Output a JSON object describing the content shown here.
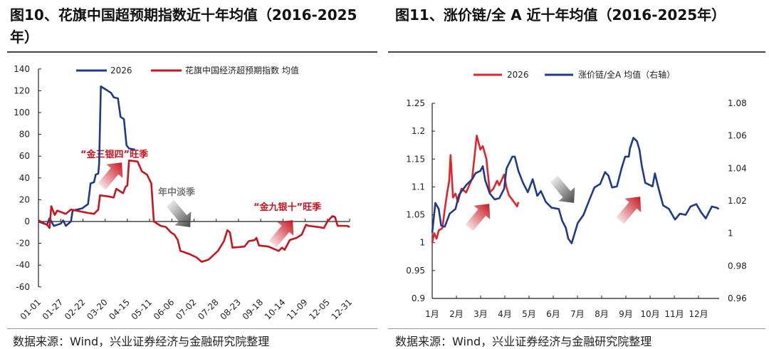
{
  "left": {
    "title": "图10、花旗中国超预期指数近十年均值（2016-2025年）",
    "source": "数据来源：Wind，兴业证券经济与金融研究院整理",
    "annotations": {
      "peak1": "“金三银四”旺季",
      "trough": "年中淡季",
      "peak2": "“金九银十”旺季"
    }
  },
  "right": {
    "title": "图11、涨价链/全 A 近十年均值（2016-2025年）",
    "source": "数据来源：Wind，兴业证券经济与金融研究院整理"
  },
  "chart_data": [
    {
      "type": "line",
      "x_unit": "day of year",
      "x_tick_labels": [
        "01-01",
        "01-27",
        "02-22",
        "03-20",
        "04-15",
        "05-11",
        "06-06",
        "07-02",
        "07-28",
        "08-23",
        "09-18",
        "10-14",
        "11-09",
        "12-05",
        "12-31"
      ],
      "ylim": [
        -60,
        140
      ],
      "y_ticks": [
        140,
        120,
        100,
        80,
        60,
        40,
        20,
        0,
        -20,
        -40,
        -60
      ],
      "legend": "top",
      "colors": {
        "2026": "#1f3a8a",
        "mean": "#c8141e"
      },
      "series": [
        {
          "name": "2026",
          "points": [
            [
              1,
              0
            ],
            [
              11,
              -3
            ],
            [
              14,
              3
            ],
            [
              19,
              -4
            ],
            [
              27,
              -2
            ],
            [
              30,
              1
            ],
            [
              33,
              -4
            ],
            [
              39,
              0
            ],
            [
              41,
              10
            ],
            [
              52,
              12
            ],
            [
              59,
              16
            ],
            [
              62,
              35
            ],
            [
              66,
              36
            ],
            [
              68,
              43
            ],
            [
              71,
              44
            ],
            [
              72,
              53
            ],
            [
              74,
              124
            ],
            [
              80,
              121
            ],
            [
              86,
              118
            ],
            [
              89,
              114
            ],
            [
              94,
              113
            ],
            [
              97,
              96
            ],
            [
              101,
              94
            ],
            [
              104,
              70
            ],
            [
              107,
              67
            ],
            [
              114,
              66
            ]
          ]
        },
        {
          "name": "花旗中国经济超预期指数 均值",
          "points": [
            [
              1,
              1
            ],
            [
              11,
              -3
            ],
            [
              14,
              -6
            ],
            [
              16,
              14
            ],
            [
              20,
              6
            ],
            [
              23,
              10
            ],
            [
              33,
              7
            ],
            [
              39,
              11
            ],
            [
              58,
              8
            ],
            [
              66,
              7
            ],
            [
              71,
              11
            ],
            [
              73,
              24
            ],
            [
              83,
              23
            ],
            [
              89,
              22
            ],
            [
              92,
              30
            ],
            [
              100,
              26
            ],
            [
              103,
              32
            ],
            [
              105,
              33
            ],
            [
              107,
              56
            ],
            [
              117,
              55
            ],
            [
              122,
              46
            ],
            [
              128,
              43
            ],
            [
              133,
              35
            ],
            [
              136,
              0
            ],
            [
              144,
              -4
            ],
            [
              150,
              -5
            ],
            [
              156,
              -10
            ],
            [
              160,
              -12
            ],
            [
              164,
              -17
            ],
            [
              167,
              -27
            ],
            [
              178,
              -30
            ],
            [
              186,
              -33
            ],
            [
              192,
              -37
            ],
            [
              200,
              -35
            ],
            [
              211,
              -27
            ],
            [
              218,
              -18
            ],
            [
              222,
              -8
            ],
            [
              225,
              -10
            ],
            [
              228,
              -24
            ],
            [
              242,
              -23
            ],
            [
              247,
              -18
            ],
            [
              254,
              -17
            ],
            [
              256,
              -15
            ],
            [
              259,
              -22
            ],
            [
              270,
              -23
            ],
            [
              282,
              -27
            ],
            [
              286,
              -24
            ],
            [
              289,
              -26
            ],
            [
              295,
              -17
            ],
            [
              303,
              -15
            ],
            [
              309,
              -12
            ],
            [
              314,
              -3
            ],
            [
              317,
              -4
            ],
            [
              328,
              -5
            ],
            [
              335,
              -6
            ],
            [
              339,
              0
            ],
            [
              345,
              5
            ],
            [
              348,
              4
            ],
            [
              351,
              -4
            ],
            [
              362,
              -4
            ],
            [
              365,
              -5
            ]
          ]
        }
      ]
    },
    {
      "type": "line",
      "x_tick_labels": [
        "1月",
        "2月",
        "3月",
        "4月",
        "5月",
        "6月",
        "7月",
        "8月",
        "9月",
        "10月",
        "11月",
        "12月"
      ],
      "ylim": [
        0.9,
        1.25
      ],
      "y_ticks": [
        "1.25",
        "1.2",
        "1.15",
        "1.1",
        "1.05",
        "1",
        "0.95",
        "0.9"
      ],
      "y2lim": [
        0.96,
        1.08
      ],
      "y2_ticks": [
        "1.08",
        "1.06",
        "1.04",
        "1.02",
        "1",
        "0.98",
        "0.96"
      ],
      "legend": "top",
      "colors": {
        "2026": "#e0242b",
        "mean": "#1f3a8a"
      },
      "series": [
        {
          "name": "2026",
          "axis": "left",
          "points": [
            [
              1.0,
              1.0
            ],
            [
              1.08,
              1.017
            ],
            [
              1.18,
              1.007
            ],
            [
              1.27,
              1.022
            ],
            [
              1.42,
              1.026
            ],
            [
              1.52,
              1.06
            ],
            [
              1.62,
              1.09
            ],
            [
              1.7,
              1.11
            ],
            [
              1.76,
              1.157
            ],
            [
              1.86,
              1.081
            ],
            [
              1.96,
              1.088
            ],
            [
              2.06,
              1.073
            ],
            [
              2.21,
              1.097
            ],
            [
              2.4,
              1.09
            ],
            [
              2.65,
              1.115
            ],
            [
              2.84,
              1.192
            ],
            [
              2.99,
              1.167
            ],
            [
              3.09,
              1.173
            ],
            [
              3.24,
              1.15
            ],
            [
              3.38,
              1.09
            ],
            [
              3.53,
              1.097
            ],
            [
              3.68,
              1.111
            ],
            [
              3.77,
              1.103
            ],
            [
              3.97,
              1.122
            ],
            [
              4.07,
              1.099
            ],
            [
              4.17,
              1.085
            ],
            [
              4.31,
              1.077
            ],
            [
              4.51,
              1.065
            ],
            [
              4.56,
              1.073
            ]
          ]
        },
        {
          "name": "涨价链/全A 均值（右轴）",
          "axis": "right",
          "points": [
            [
              1.0,
              1.0004
            ],
            [
              1.13,
              1.0187
            ],
            [
              1.27,
              1.015
            ],
            [
              1.37,
              1.0048
            ],
            [
              1.52,
              1.0041
            ],
            [
              1.72,
              1.0121
            ],
            [
              1.96,
              1.015
            ],
            [
              2.11,
              1.0238
            ],
            [
              2.4,
              1.0296
            ],
            [
              2.65,
              1.0333
            ],
            [
              2.79,
              1.037
            ],
            [
              2.99,
              1.0384
            ],
            [
              3.09,
              1.0413
            ],
            [
              3.19,
              1.0326
            ],
            [
              3.38,
              1.0245
            ],
            [
              3.58,
              1.0209
            ],
            [
              3.77,
              1.0216
            ],
            [
              3.97,
              1.0274
            ],
            [
              4.07,
              1.0399
            ],
            [
              4.31,
              1.0472
            ],
            [
              4.41,
              1.0472
            ],
            [
              4.56,
              1.0384
            ],
            [
              4.75,
              1.0311
            ],
            [
              4.95,
              1.0253
            ],
            [
              5.15,
              1.0333
            ],
            [
              5.34,
              1.0231
            ],
            [
              5.49,
              1.026
            ],
            [
              5.69,
              1.0194
            ],
            [
              5.93,
              1.0158
            ],
            [
              6.23,
              1.015
            ],
            [
              6.37,
              1.0077
            ],
            [
              6.52,
              1.0034
            ],
            [
              6.62,
              0.9968
            ],
            [
              6.76,
              0.9939
            ],
            [
              7.01,
              1.0063
            ],
            [
              7.25,
              1.0114
            ],
            [
              7.5,
              1.0209
            ],
            [
              7.7,
              1.0282
            ],
            [
              7.94,
              1.0304
            ],
            [
              8.14,
              1.0377
            ],
            [
              8.28,
              1.0355
            ],
            [
              8.43,
              1.0282
            ],
            [
              8.63,
              1.0289
            ],
            [
              8.82,
              1.0399
            ],
            [
              8.97,
              1.0472
            ],
            [
              9.12,
              1.0472
            ],
            [
              9.17,
              1.0523
            ],
            [
              9.31,
              1.0588
            ],
            [
              9.46,
              1.0566
            ],
            [
              9.56,
              1.0515
            ],
            [
              9.66,
              1.0413
            ],
            [
              9.8,
              1.0311
            ],
            [
              10.1,
              1.0289
            ],
            [
              10.2,
              1.0369
            ],
            [
              10.34,
              1.0282
            ],
            [
              10.54,
              1.0172
            ],
            [
              10.78,
              1.015
            ],
            [
              11.03,
              1.0085
            ],
            [
              11.23,
              1.0121
            ],
            [
              11.47,
              1.0114
            ],
            [
              11.67,
              1.0165
            ],
            [
              11.91,
              1.018
            ],
            [
              12.11,
              1.0129
            ],
            [
              12.3,
              1.0092
            ],
            [
              12.55,
              1.0165
            ],
            [
              12.75,
              1.0158
            ],
            [
              12.84,
              1.015
            ]
          ]
        }
      ]
    }
  ]
}
